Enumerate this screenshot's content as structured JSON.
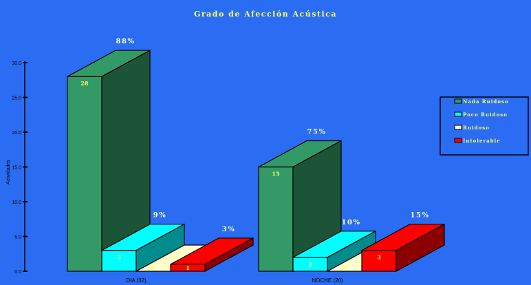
{
  "chart_data": {
    "type": "bar",
    "title": "Grado de Afección Acústica",
    "ylabel": "Actividades",
    "xlabel": "",
    "ylim": [
      0,
      30
    ],
    "yticks": [
      0,
      5,
      10,
      15,
      20,
      25,
      30
    ],
    "categories": [
      "DIA (32)",
      "NOCHE (20)"
    ],
    "series": [
      {
        "name": "Nada Ruidoso",
        "values": [
          28,
          15
        ],
        "percent_labels": [
          "88%",
          "75%"
        ],
        "color": "#339966"
      },
      {
        "name": "Poco Ruidoso",
        "values": [
          3,
          2
        ],
        "percent_labels": [
          "9%",
          "10%"
        ],
        "color": "#00ffff"
      },
      {
        "name": "Ruidoso",
        "values": [
          0,
          0
        ],
        "percent_labels": [
          "",
          ""
        ],
        "color": "#ffffcc"
      },
      {
        "name": "Intolerable",
        "values": [
          1,
          3
        ],
        "percent_labels": [
          "3%",
          "15%"
        ],
        "color": "#ff0000"
      }
    ],
    "legend_position": "right",
    "grid": false,
    "style": "3d-bar"
  },
  "colors": {
    "background": "#2a6cf2",
    "title": "#ffff66",
    "value_label": "#ffff66",
    "percent_label": "#ffffcc",
    "axis": "#000000"
  }
}
